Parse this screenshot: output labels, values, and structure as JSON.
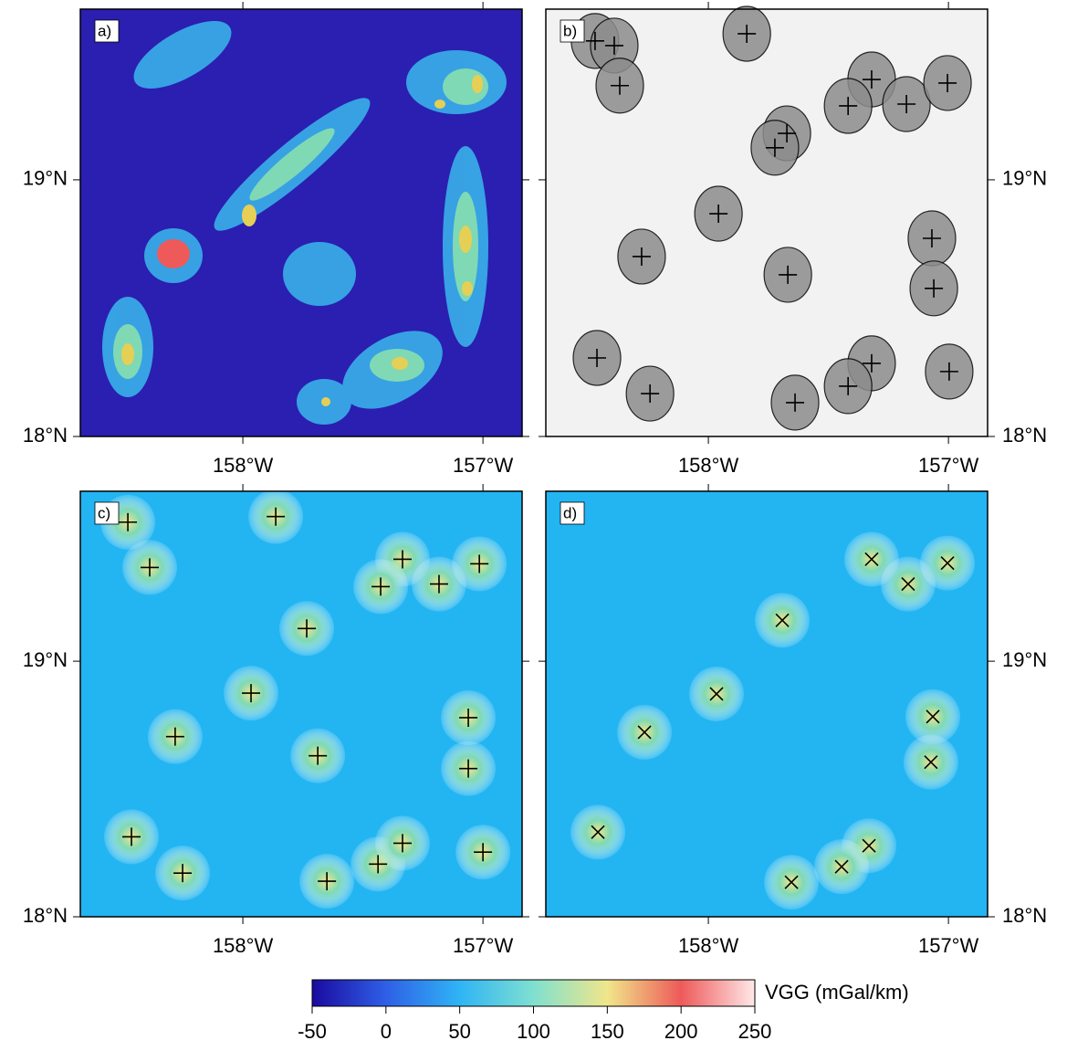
{
  "xlim": [
    -158.677,
    -156.837
  ],
  "ylim": [
    18,
    19.665
  ],
  "xticks": [
    {
      "value": -158,
      "label": "158°W"
    },
    {
      "value": -157,
      "label": "157°W"
    }
  ],
  "yticks": [
    {
      "value": 18,
      "label": "18°N"
    },
    {
      "value": 19,
      "label": "19°N"
    }
  ],
  "panels": [
    {
      "label": "a)",
      "background": "#2a1fb0",
      "marker": "none",
      "markers": {
        "lon": [],
        "lat": []
      }
    },
    {
      "label": "b)",
      "background": "#f2f2f2",
      "blob_color": "#8c8c8c",
      "marker": "plus",
      "markers": {
        "lon": [
          -158.472,
          -158.392,
          -158.369,
          -157.84,
          -157.32,
          -157.418,
          -157.175,
          -157.004,
          -157.673,
          -157.723,
          -157.958,
          -158.278,
          -157.069,
          -157.061,
          -157.669,
          -158.464,
          -158.243,
          -157.32,
          -157.418,
          -157.639,
          -156.997
        ],
        "lat": [
          19.541,
          19.523,
          19.367,
          19.569,
          19.391,
          19.288,
          19.295,
          19.377,
          19.181,
          19.125,
          18.868,
          18.701,
          18.772,
          18.577,
          18.63,
          18.306,
          18.167,
          18.285,
          18.196,
          18.132,
          18.253
        ]
      }
    },
    {
      "label": "c)",
      "background": "#22b5f2",
      "blob_color": "#7fd9b4",
      "marker": "plus",
      "markers": {
        "lon": [
          -158.479,
          -157.863,
          -158.388,
          -157.335,
          -157.426,
          -157.183,
          -157.015,
          -157.734,
          -157.966,
          -158.282,
          -157.061,
          -157.688,
          -157.061,
          -158.464,
          -158.251,
          -157.65,
          -157.437,
          -157.335,
          -157.0
        ],
        "lat": [
          19.544,
          19.566,
          19.367,
          19.399,
          19.292,
          19.302,
          19.381,
          19.128,
          18.875,
          18.705,
          18.779,
          18.63,
          18.58,
          18.313,
          18.171,
          18.139,
          18.206,
          18.288,
          18.253
        ]
      }
    },
    {
      "label": "d)",
      "background": "#22b5f2",
      "blob_color": "#7fd9b4",
      "marker": "x",
      "markers": {
        "lon": [
          -157.32,
          -157.168,
          -157.004,
          -157.692,
          -157.966,
          -158.266,
          -157.065,
          -157.073,
          -158.46,
          -157.331,
          -157.445,
          -157.654
        ],
        "lat": [
          19.399,
          19.302,
          19.384,
          19.16,
          18.872,
          18.722,
          18.783,
          18.605,
          18.331,
          18.278,
          18.196,
          18.135
        ]
      }
    }
  ],
  "colorbar": {
    "label": "VGG (mGal/km)",
    "lim": [
      -50,
      250
    ],
    "ticks": [
      -50,
      0,
      50,
      100,
      150,
      200,
      250
    ],
    "colors": [
      "#1a0aa0",
      "#2f5fe6",
      "#2fb4f5",
      "#7fe0d0",
      "#f0e68a",
      "#ee5a5a",
      "#ffe8e8"
    ]
  }
}
